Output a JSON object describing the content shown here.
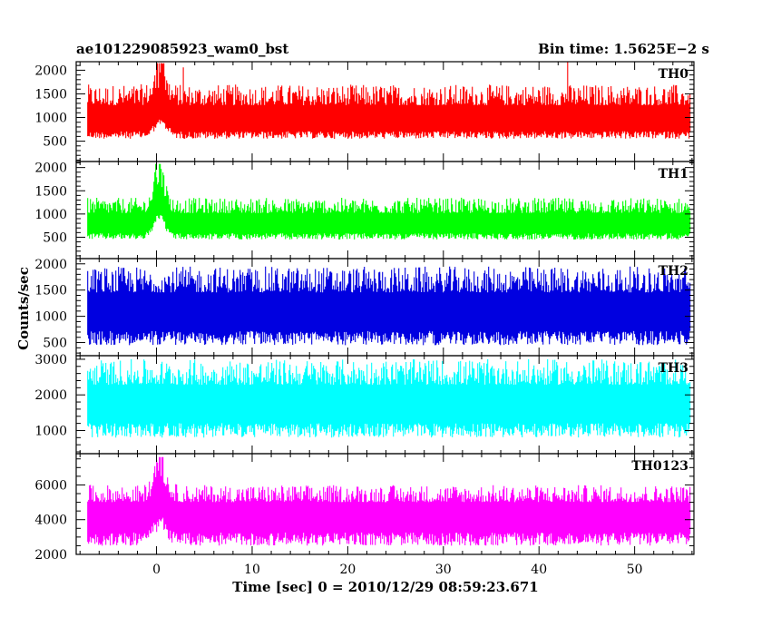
{
  "header": {
    "title_left": "ae101229085923_wam0_bst",
    "title_right": "Bin time: 1.5625E−2 s"
  },
  "chart_data": {
    "type": "line",
    "xlabel": "Time [sec] 0 = 2010/12/29 08:59:23.671",
    "ylabel": "Counts/sec",
    "xlim": [
      -8.4,
      56.2
    ],
    "x_ticks": [
      0,
      10,
      20,
      30,
      40,
      50
    ],
    "x_minor_step": 2,
    "panels": [
      {
        "name": "TH0",
        "color": "#ff0000",
        "ylim": [
          70,
          2180
        ],
        "y_ticks": [
          500,
          1000,
          1500,
          2000
        ],
        "y_minor_step": 100,
        "baseline": 900,
        "noise_low": 350,
        "noise_high": 800,
        "burst": {
          "t": 0.4,
          "peak": 2150,
          "width": 0.9
        },
        "spikes": [
          {
            "t": 43.0,
            "value": 2180
          },
          {
            "t": 2.8,
            "value": 2060
          }
        ]
      },
      {
        "name": "TH1",
        "color": "#00ff00",
        "ylim": [
          40,
          2130
        ],
        "y_ticks": [
          500,
          1000,
          1500,
          2000
        ],
        "y_minor_step": 100,
        "baseline": 750,
        "noise_low": 300,
        "noise_high": 600,
        "burst": {
          "t": 0.3,
          "peak": 2080,
          "width": 0.8
        },
        "spikes": []
      },
      {
        "name": "TH2",
        "color": "#0000e0",
        "ylim": [
          250,
          2100
        ],
        "y_ticks": [
          500,
          1000,
          1500,
          2000
        ],
        "y_minor_step": 100,
        "baseline": 1050,
        "noise_low": 600,
        "noise_high": 900,
        "burst": null,
        "spikes": []
      },
      {
        "name": "TH3",
        "color": "#00ffff",
        "ylim": [
          350,
          3100
        ],
        "y_ticks": [
          1000,
          2000,
          3000
        ],
        "y_minor_step": 200,
        "baseline": 1700,
        "noise_low": 900,
        "noise_high": 1300,
        "burst": null,
        "spikes": []
      },
      {
        "name": "TH0123",
        "color": "#ff00ff",
        "ylim": [
          2000,
          7800
        ],
        "y_ticks": [
          2000,
          4000,
          6000
        ],
        "y_minor_step": 500,
        "baseline": 4200,
        "noise_low": 1700,
        "noise_high": 1800,
        "burst": {
          "t": 0.4,
          "peak": 7600,
          "width": 0.9
        },
        "spikes": []
      }
    ]
  }
}
